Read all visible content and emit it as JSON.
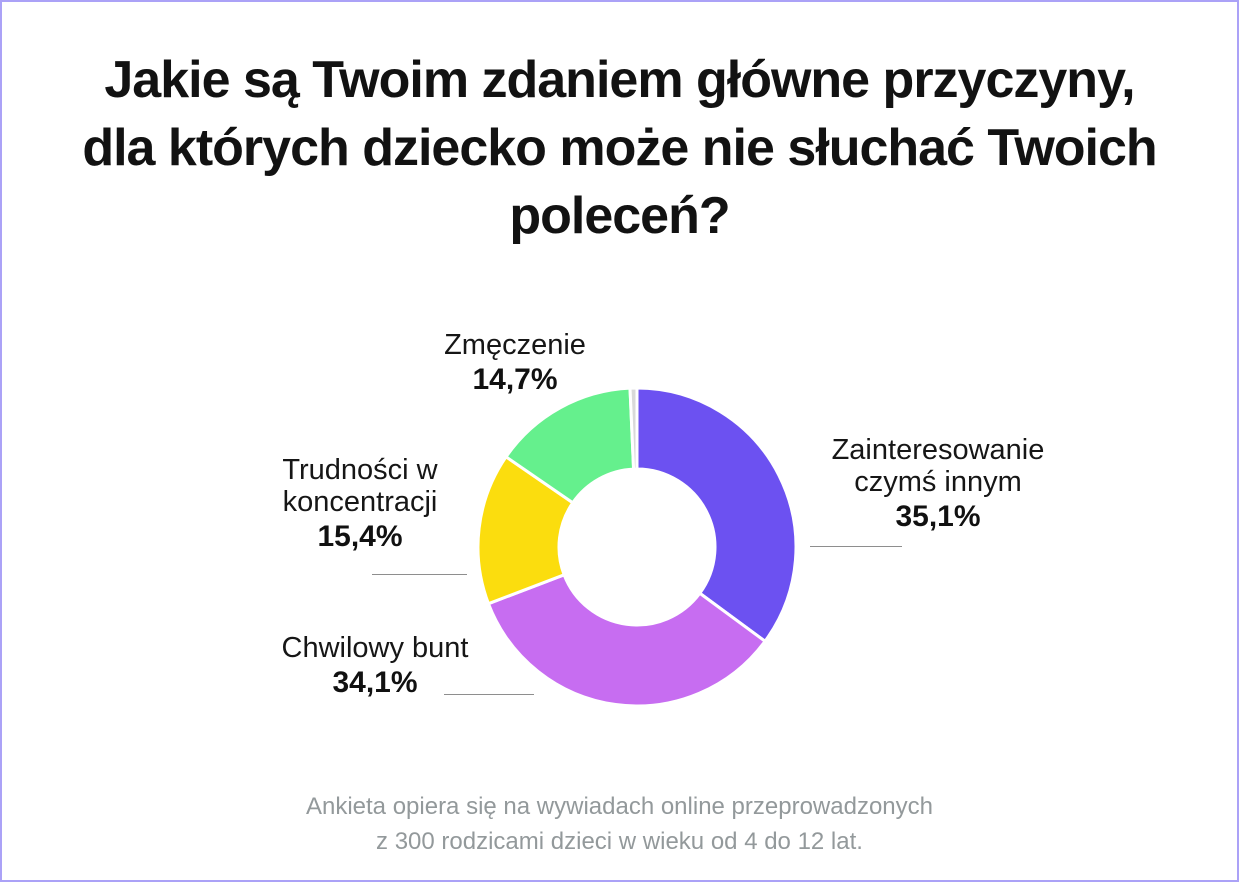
{
  "page": {
    "background_color": "#ffffff",
    "border_color": "#aba2f7",
    "title": "Jakie są Twoim zdaniem główne przyczyny, dla których dziecko może nie słuchać Twoich poleceń?",
    "footnote_line1": "Ankieta opiera się na wywiadach online przeprowadzonych",
    "footnote_line2": "z 300 rodzicami dzieci w wieku od 4 do 12 lat."
  },
  "chart_data": {
    "type": "pie",
    "variant": "donut",
    "title": "Jakie są Twoim zdaniem główne przyczyny, dla których dziecko może nie słuchać Twoich poleceń?",
    "direction": "clockwise",
    "start_angle_deg": 0,
    "inner_radius_ratio": 0.49,
    "gap_color": "#ffffff",
    "legend_position": "callout-labels-around-donut",
    "slices": [
      {
        "label": "Zainteresowanie czymś innym",
        "value": 35.1,
        "percent_label": "35,1%",
        "color": "#6c51f1"
      },
      {
        "label": "Chwilowy bunt",
        "value": 34.1,
        "percent_label": "34,1%",
        "color": "#c76df1"
      },
      {
        "label": "Trudności w koncentracji",
        "value": 15.4,
        "percent_label": "15,4%",
        "color": "#fbdd0e"
      },
      {
        "label": "Zmęczenie",
        "value": 14.7,
        "percent_label": "14,7%",
        "color": "#65f08d"
      },
      {
        "label": "",
        "value": 0.7,
        "percent_label": "",
        "color": "#d9d9d9"
      }
    ]
  }
}
